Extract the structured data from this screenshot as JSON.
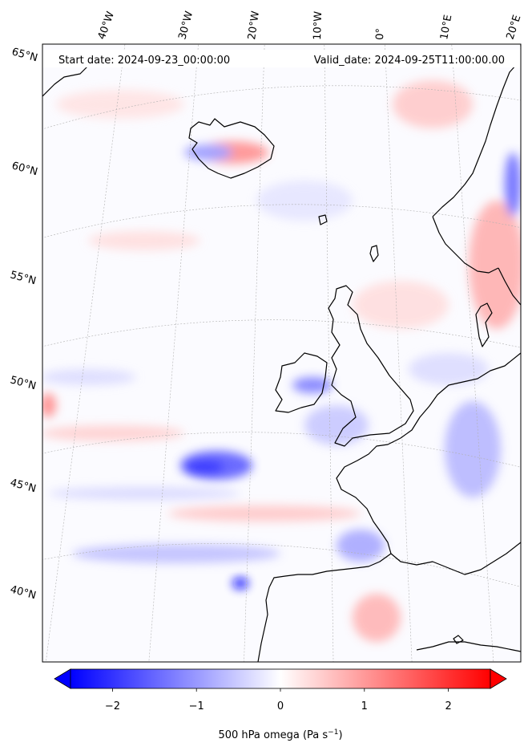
{
  "header": {
    "start_date": "Start date: 2024-09-23_00:00:00",
    "valid_date": "Valid_date: 2024-09-25T11:00:00.00"
  },
  "longitude_labels": [
    "40°W",
    "30°W",
    "20°W",
    "10°W",
    "0°",
    "10°E",
    "20°E"
  ],
  "latitude_labels": [
    "65°N",
    "60°N",
    "55°N",
    "50°N",
    "45°N",
    "40°N"
  ],
  "colorbar": {
    "min": -2.5,
    "max": 2.5,
    "ticks": [
      -2,
      -1,
      0,
      1,
      2
    ],
    "tick_labels": [
      "−2",
      "−1",
      "0",
      "1",
      "2"
    ],
    "label_main": "500 hPa omega (Pa s",
    "label_sup": "−1",
    "label_close": ")",
    "low_color": "#0000ff",
    "mid_color": "#ffffff",
    "high_color": "#ff0000",
    "extend": "both"
  },
  "colors": {
    "coastline": "#000000",
    "gridline": "#b0b0b0"
  }
}
